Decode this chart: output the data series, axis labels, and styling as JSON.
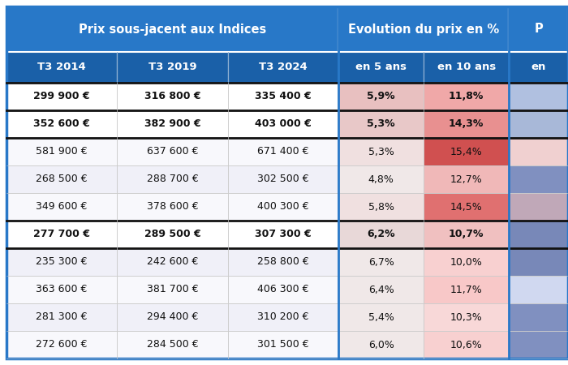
{
  "sub_headers": [
    "T3 2014",
    "T3 2019",
    "T3 2024",
    "en 5 ans",
    "en 10 ans",
    "en"
  ],
  "rows": [
    {
      "vals": [
        "299 900 €",
        "316 800 €",
        "335 400 €",
        "5,9%",
        "11,8%"
      ],
      "bold": true
    },
    {
      "vals": [
        "352 600 €",
        "382 900 €",
        "403 000 €",
        "5,3%",
        "14,3%"
      ],
      "bold": true
    },
    {
      "vals": [
        "581 900 €",
        "637 600 €",
        "671 400 €",
        "5,3%",
        "15,4%"
      ],
      "bold": false
    },
    {
      "vals": [
        "268 500 €",
        "288 700 €",
        "302 500 €",
        "4,8%",
        "12,7%"
      ],
      "bold": false
    },
    {
      "vals": [
        "349 600 €",
        "378 600 €",
        "400 300 €",
        "5,8%",
        "14,5%"
      ],
      "bold": false
    },
    {
      "vals": [
        "277 700 €",
        "289 500 €",
        "307 300 €",
        "6,2%",
        "10,7%"
      ],
      "bold": true
    },
    {
      "vals": [
        "235 300 €",
        "242 600 €",
        "258 800 €",
        "6,7%",
        "10,0%"
      ],
      "bold": false
    },
    {
      "vals": [
        "363 600 €",
        "381 700 €",
        "406 300 €",
        "6,4%",
        "11,7%"
      ],
      "bold": false
    },
    {
      "vals": [
        "281 300 €",
        "294 400 €",
        "310 200 €",
        "5,4%",
        "10,3%"
      ],
      "bold": false
    },
    {
      "vals": [
        "272 600 €",
        "284 500 €",
        "301 500 €",
        "6,0%",
        "10,6%"
      ],
      "bold": false
    }
  ],
  "row_5ans_colors": [
    "#e8c0c0",
    "#e8c8c8",
    "#f0e0e0",
    "#f0e8e8",
    "#f0e0e0",
    "#e8d8d8",
    "#f0e8e8",
    "#f0e8e8",
    "#f0e8e8",
    "#f0e8e8"
  ],
  "row_10ans_colors": [
    "#f0a8a8",
    "#e89090",
    "#d05050",
    "#f0b8b8",
    "#e07070",
    "#f0c0c0",
    "#f8d0d0",
    "#f8c8c8",
    "#f8d8d8",
    "#f8d0d0"
  ],
  "row_right_colors": [
    "#b0c0e0",
    "#a8b8d8",
    "#f0d0d0",
    "#8090c0",
    "#c0a8b8",
    "#7888b8",
    "#7888b8",
    "#d0d8f0",
    "#8090c0",
    "#8090c0"
  ],
  "row_left_colors": [
    "#ffffff",
    "#ffffff",
    "#f8f8fc",
    "#f0f0f8",
    "#f8f8fc",
    "#ffffff",
    "#f0f0f8",
    "#f8f8fc",
    "#f0f0f8",
    "#f8f8fc"
  ],
  "header_blue": "#2878c8",
  "sub_header_blue": "#1a60a8",
  "header_fontsize": 10.5,
  "subheader_fontsize": 9.5,
  "data_fontsize": 9.0
}
